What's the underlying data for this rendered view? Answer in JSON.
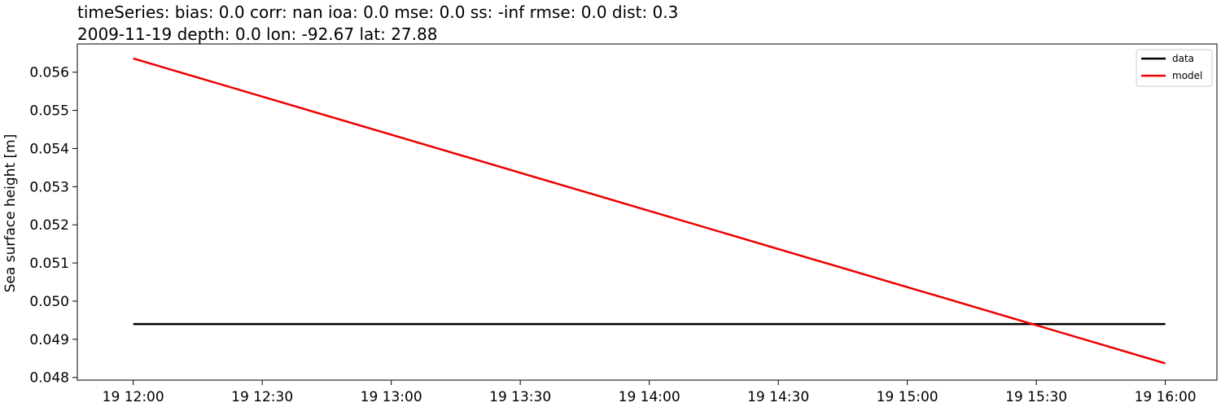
{
  "chart_data": {
    "type": "line",
    "title_lines": [
      "timeSeries: bias: 0.0  corr: nan  ioa: 0.0  mse: 0.0  ss: -inf  rmse: 0.0  dist: 0.3",
      "2009-11-19 depth: 0.0 lon: -92.67 lat: 27.88"
    ],
    "xlabel": "",
    "ylabel": "Sea surface height [m]",
    "x_ticks": [
      "19 12:00",
      "19 12:30",
      "19 13:00",
      "19 13:30",
      "19 14:00",
      "19 14:30",
      "19 15:00",
      "19 15:30",
      "19 16:00"
    ],
    "xlim": [
      "2009-11-19 11:47",
      "2009-11-19 16:12"
    ],
    "y_ticks": [
      "0.048",
      "0.049",
      "0.050",
      "0.051",
      "0.052",
      "0.053",
      "0.054",
      "0.055",
      "0.056"
    ],
    "ylim": [
      0.04793,
      0.05674
    ],
    "grid": false,
    "legend_position": "top-right",
    "series": [
      {
        "name": "data",
        "color": "#000000",
        "x": [
          "2009-11-19 12:00",
          "2009-11-19 16:00"
        ],
        "y": [
          0.0494,
          0.0494
        ]
      },
      {
        "name": "model",
        "color": "#ee0000",
        "x": [
          "2009-11-19 12:00",
          "2009-11-19 16:00"
        ],
        "y": [
          0.05636,
          0.04837
        ]
      }
    ]
  }
}
